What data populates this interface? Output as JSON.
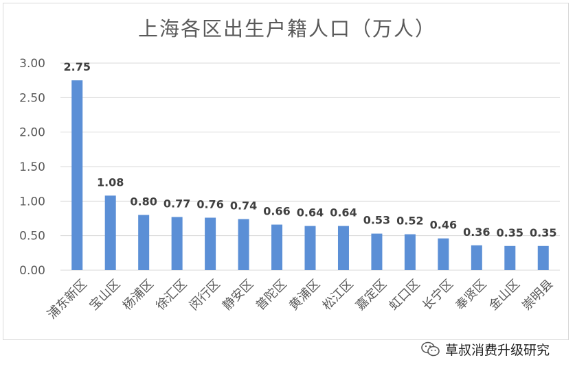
{
  "chart_data": {
    "type": "bar",
    "title": "上海各区出生户籍人口（万人）",
    "categories": [
      "浦东新区",
      "宝山区",
      "杨浦区",
      "徐汇区",
      "闵行区",
      "静安区",
      "普陀区",
      "黄浦区",
      "松江区",
      "嘉定区",
      "虹口区",
      "长宁区",
      "奉贤区",
      "金山区",
      "崇明县"
    ],
    "values": [
      2.75,
      1.08,
      0.8,
      0.77,
      0.76,
      0.74,
      0.66,
      0.64,
      0.64,
      0.53,
      0.52,
      0.46,
      0.36,
      0.35,
      0.35
    ],
    "data_labels": [
      "2.75",
      "1.08",
      "0.80",
      "0.77",
      "0.76",
      "0.74",
      "0.66",
      "0.64",
      "0.64",
      "0.53",
      "0.52",
      "0.46",
      "0.36",
      "0.35",
      "0.35"
    ],
    "yticks": [
      "0.00",
      "0.50",
      "1.00",
      "1.50",
      "2.00",
      "2.50",
      "3.00"
    ],
    "ylim": [
      0,
      3
    ],
    "xlabel": "",
    "ylabel": "",
    "grid": true,
    "legend": "none",
    "colors": {
      "bar": "#5b8fd6",
      "grid": "#d9d9d9",
      "text": "#595959",
      "label": "#404040"
    }
  },
  "watermark": {
    "text": "草叔消费升级研究",
    "icon": "wechat-icon"
  }
}
